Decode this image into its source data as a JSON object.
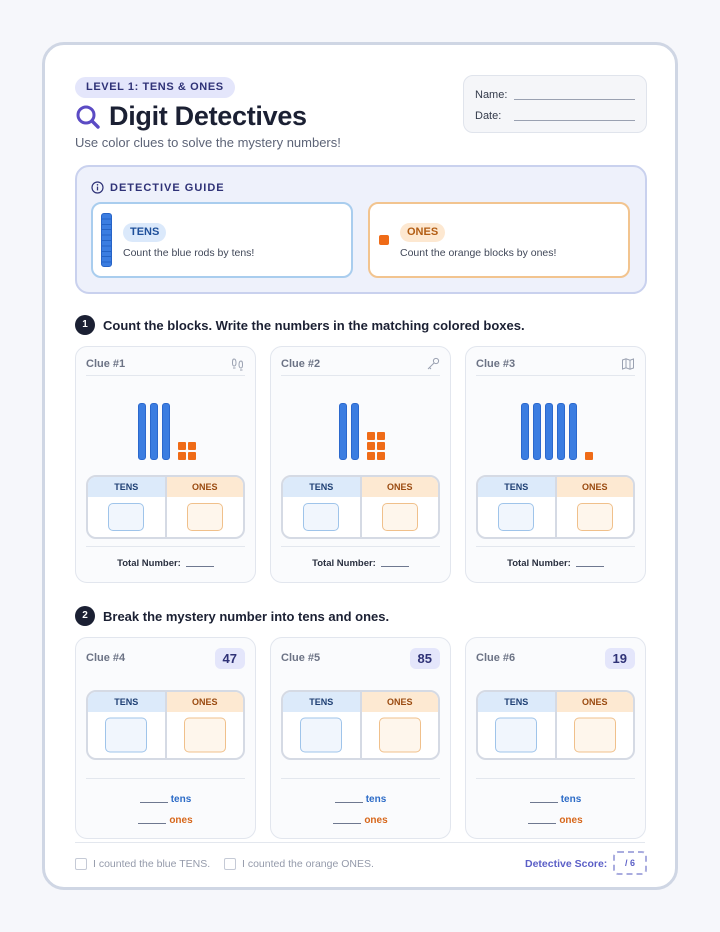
{
  "header": {
    "level": "LEVEL 1: TENS & ONES",
    "title": "Digit Detectives",
    "subtitle": "Use color clues to solve the mystery numbers!",
    "name_label": "Name:",
    "date_label": "Date:"
  },
  "guide": {
    "heading": "DETECTIVE GUIDE",
    "tens": {
      "tag": "TENS",
      "text": "Count the blue rods by tens!"
    },
    "ones": {
      "tag": "ONES",
      "text": "Count the orange blocks by ones!"
    }
  },
  "section1": {
    "number": "1",
    "instruction": "Count the blocks. Write the numbers in the matching colored boxes.",
    "clues": [
      {
        "label": "Clue #1",
        "icon": "footprints-icon",
        "tens_rods": 3,
        "ones_blocks": 4
      },
      {
        "label": "Clue #2",
        "icon": "key-icon",
        "tens_rods": 2,
        "ones_blocks": 6
      },
      {
        "label": "Clue #3",
        "icon": "map-icon",
        "tens_rods": 5,
        "ones_blocks": 1
      }
    ],
    "tens_header": "TENS",
    "ones_header": "ONES",
    "total_label": "Total Number:"
  },
  "section2": {
    "number": "2",
    "instruction": "Break the mystery number into tens and ones.",
    "clues": [
      {
        "label": "Clue #4",
        "number": "47"
      },
      {
        "label": "Clue #5",
        "number": "85"
      },
      {
        "label": "Clue #6",
        "number": "19"
      }
    ],
    "tens_header": "TENS",
    "ones_header": "ONES",
    "tens_word": "tens",
    "ones_word": "ones"
  },
  "footer": {
    "check_tens": "I counted the blue TENS.",
    "check_ones": "I counted the orange ONES.",
    "score_label": "Detective Score:",
    "score_value": "/ 6"
  },
  "colors": {
    "tens": "#3b7de1",
    "ones": "#ef6b17",
    "accent": "#5b5fc7"
  }
}
